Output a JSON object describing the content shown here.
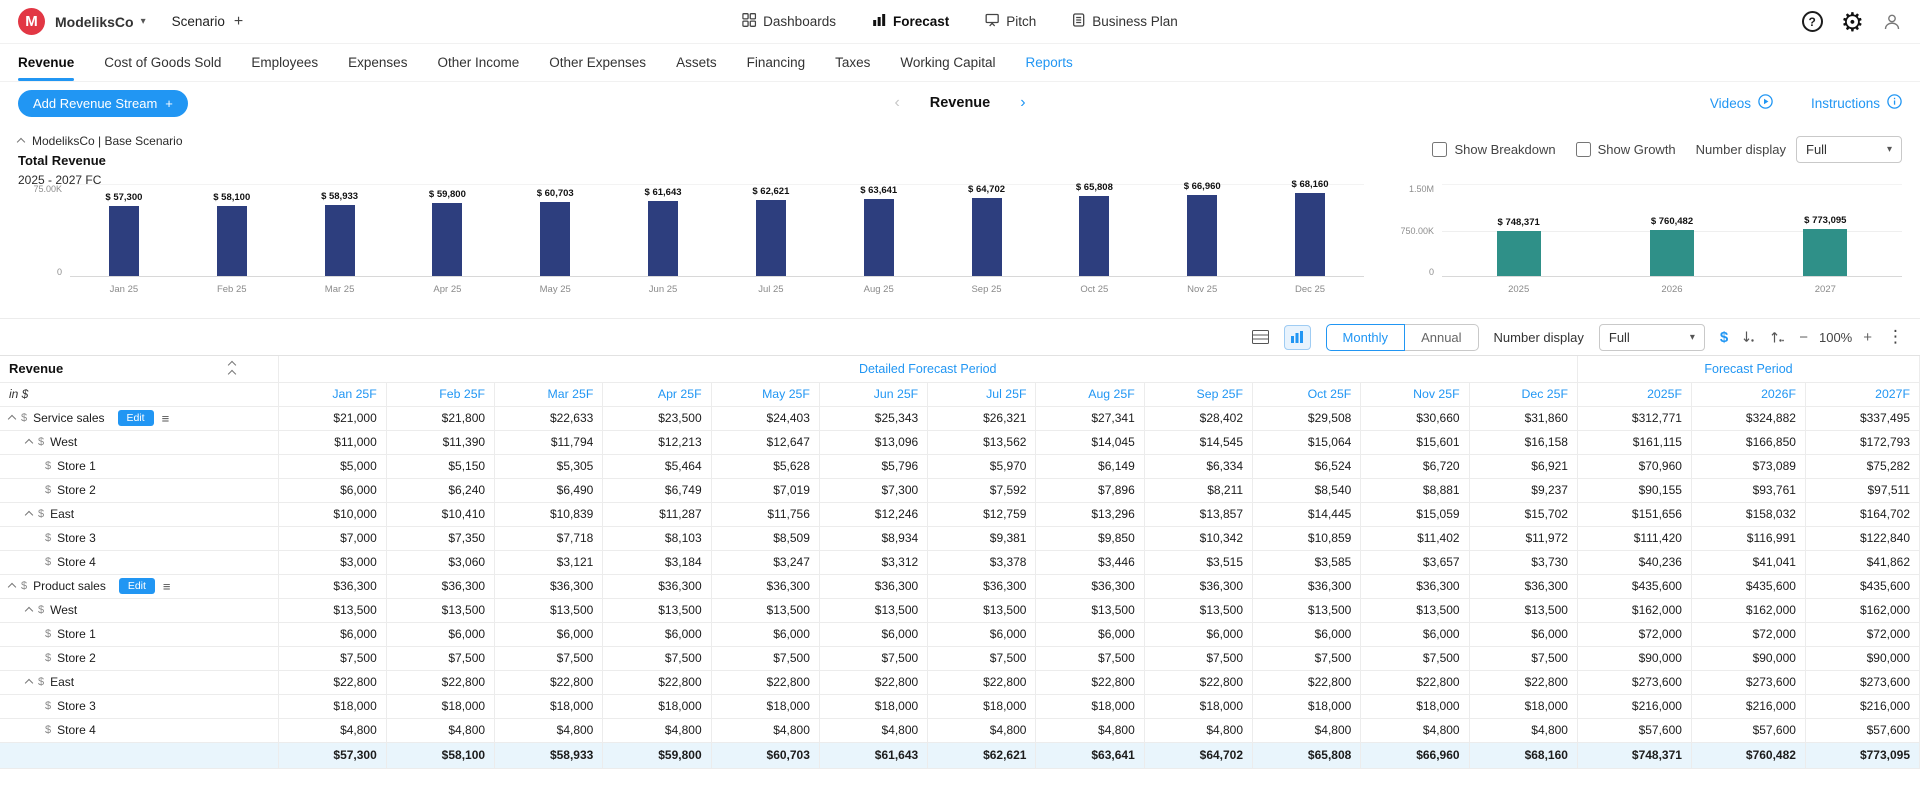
{
  "icons": {
    "chevron_down": "▾",
    "plus": "+",
    "help": "?",
    "gear": "⚙",
    "kebab": "⋮",
    "hamburger": "≡",
    "prev": "‹",
    "next": "›",
    "minus": "−",
    "zoom_plus": "+",
    "dollar": "$"
  },
  "topbar": {
    "logo_letter": "M",
    "company": "ModeliksCo",
    "scenario": "Scenario",
    "nav": [
      {
        "label": "Dashboards",
        "active": false
      },
      {
        "label": "Forecast",
        "active": true
      },
      {
        "label": "Pitch",
        "active": false
      },
      {
        "label": "Business Plan",
        "active": false
      }
    ]
  },
  "tabs": [
    {
      "label": "Revenue",
      "active": true
    },
    {
      "label": "Cost of Goods Sold"
    },
    {
      "label": "Employees"
    },
    {
      "label": "Expenses"
    },
    {
      "label": "Other Income"
    },
    {
      "label": "Other Expenses"
    },
    {
      "label": "Assets"
    },
    {
      "label": "Financing"
    },
    {
      "label": "Taxes"
    },
    {
      "label": "Working Capital"
    },
    {
      "label": "Reports",
      "link": true
    }
  ],
  "section_bar": {
    "add_button": "Add Revenue Stream",
    "title": "Revenue",
    "videos": "Videos",
    "instructions": "Instructions"
  },
  "chart_panel": {
    "context": "ModeliksCo | Base Scenario",
    "title": "Total Revenue",
    "period": "2025 - 2027 FC",
    "show_breakdown": "Show Breakdown",
    "show_growth": "Show Growth",
    "number_display_label": "Number display",
    "number_display_value": "Full"
  },
  "chart_data": [
    {
      "type": "bar",
      "title": "Total Revenue — Monthly 2025",
      "categories": [
        "Jan 25",
        "Feb 25",
        "Mar 25",
        "Apr 25",
        "May 25",
        "Jun 25",
        "Jul 25",
        "Aug 25",
        "Sep 25",
        "Oct 25",
        "Nov 25",
        "Dec 25"
      ],
      "values": [
        57300,
        58100,
        58933,
        59800,
        60703,
        61643,
        62621,
        63641,
        64702,
        65808,
        66960,
        68160
      ],
      "value_labels": [
        "$ 57,300",
        "$ 58,100",
        "$ 58,933",
        "$ 59,800",
        "$ 60,703",
        "$ 61,643",
        "$ 62,621",
        "$ 63,641",
        "$ 64,702",
        "$ 65,808",
        "$ 66,960",
        "$ 68,160"
      ],
      "ylim": [
        0,
        75000
      ],
      "yticks": [
        "75.00K",
        "0"
      ],
      "bar_color": "#2d3e7e",
      "legend": "none",
      "grid": "baseline"
    },
    {
      "type": "bar",
      "title": "Total Revenue — Annual",
      "categories": [
        "2025",
        "2026",
        "2027"
      ],
      "values": [
        748371,
        760482,
        773095
      ],
      "value_labels": [
        "$ 748,371",
        "$ 760,482",
        "$ 773,095"
      ],
      "ylim": [
        0,
        1500000
      ],
      "yticks": [
        "1.50M",
        "750.00K",
        "0"
      ],
      "bar_color": "#2f9088",
      "legend": "none",
      "grid": "baseline+mid"
    }
  ],
  "table_toolbar": {
    "monthly": "Monthly",
    "annual": "Annual",
    "number_display_label": "Number display",
    "number_display_value": "Full",
    "zoom": "100%"
  },
  "table": {
    "corner_title": "Revenue",
    "corner_sub": "in $",
    "group_monthly": "Detailed Forecast Period",
    "group_annual": "Forecast Period",
    "edit_label": "Edit",
    "monthly_columns": [
      "Jan 25F",
      "Feb 25F",
      "Mar 25F",
      "Apr 25F",
      "May 25F",
      "Jun 25F",
      "Jul 25F",
      "Aug 25F",
      "Sep 25F",
      "Oct 25F",
      "Nov 25F",
      "Dec 25F"
    ],
    "annual_columns": [
      "2025F",
      "2026F",
      "2027F"
    ],
    "rows": [
      {
        "label": "Service sales",
        "level": 0,
        "expandable": true,
        "edit": true,
        "monthly": [
          "$21,000",
          "$21,800",
          "$22,633",
          "$23,500",
          "$24,403",
          "$25,343",
          "$26,321",
          "$27,341",
          "$28,402",
          "$29,508",
          "$30,660",
          "$31,860"
        ],
        "annual": [
          "$312,771",
          "$324,882",
          "$337,495"
        ]
      },
      {
        "label": "West",
        "level": 1,
        "expandable": true,
        "edit": false,
        "monthly": [
          "$11,000",
          "$11,390",
          "$11,794",
          "$12,213",
          "$12,647",
          "$13,096",
          "$13,562",
          "$14,045",
          "$14,545",
          "$15,064",
          "$15,601",
          "$16,158"
        ],
        "annual": [
          "$161,115",
          "$166,850",
          "$172,793"
        ]
      },
      {
        "label": "Store 1",
        "level": 2,
        "expandable": false,
        "edit": false,
        "monthly": [
          "$5,000",
          "$5,150",
          "$5,305",
          "$5,464",
          "$5,628",
          "$5,796",
          "$5,970",
          "$6,149",
          "$6,334",
          "$6,524",
          "$6,720",
          "$6,921"
        ],
        "annual": [
          "$70,960",
          "$73,089",
          "$75,282"
        ]
      },
      {
        "label": "Store 2",
        "level": 2,
        "expandable": false,
        "edit": false,
        "monthly": [
          "$6,000",
          "$6,240",
          "$6,490",
          "$6,749",
          "$7,019",
          "$7,300",
          "$7,592",
          "$7,896",
          "$8,211",
          "$8,540",
          "$8,881",
          "$9,237"
        ],
        "annual": [
          "$90,155",
          "$93,761",
          "$97,511"
        ]
      },
      {
        "label": "East",
        "level": 1,
        "expandable": true,
        "edit": false,
        "monthly": [
          "$10,000",
          "$10,410",
          "$10,839",
          "$11,287",
          "$11,756",
          "$12,246",
          "$12,759",
          "$13,296",
          "$13,857",
          "$14,445",
          "$15,059",
          "$15,702"
        ],
        "annual": [
          "$151,656",
          "$158,032",
          "$164,702"
        ]
      },
      {
        "label": "Store 3",
        "level": 2,
        "expandable": false,
        "edit": false,
        "monthly": [
          "$7,000",
          "$7,350",
          "$7,718",
          "$8,103",
          "$8,509",
          "$8,934",
          "$9,381",
          "$9,850",
          "$10,342",
          "$10,859",
          "$11,402",
          "$11,972"
        ],
        "annual": [
          "$111,420",
          "$116,991",
          "$122,840"
        ]
      },
      {
        "label": "Store 4",
        "level": 2,
        "expandable": false,
        "edit": false,
        "monthly": [
          "$3,000",
          "$3,060",
          "$3,121",
          "$3,184",
          "$3,247",
          "$3,312",
          "$3,378",
          "$3,446",
          "$3,515",
          "$3,585",
          "$3,657",
          "$3,730"
        ],
        "annual": [
          "$40,236",
          "$41,041",
          "$41,862"
        ]
      },
      {
        "label": "Product sales",
        "level": 0,
        "expandable": true,
        "edit": true,
        "monthly": [
          "$36,300",
          "$36,300",
          "$36,300",
          "$36,300",
          "$36,300",
          "$36,300",
          "$36,300",
          "$36,300",
          "$36,300",
          "$36,300",
          "$36,300",
          "$36,300"
        ],
        "annual": [
          "$435,600",
          "$435,600",
          "$435,600"
        ]
      },
      {
        "label": "West",
        "level": 1,
        "expandable": true,
        "edit": false,
        "monthly": [
          "$13,500",
          "$13,500",
          "$13,500",
          "$13,500",
          "$13,500",
          "$13,500",
          "$13,500",
          "$13,500",
          "$13,500",
          "$13,500",
          "$13,500",
          "$13,500"
        ],
        "annual": [
          "$162,000",
          "$162,000",
          "$162,000"
        ]
      },
      {
        "label": "Store 1",
        "level": 2,
        "expandable": false,
        "edit": false,
        "monthly": [
          "$6,000",
          "$6,000",
          "$6,000",
          "$6,000",
          "$6,000",
          "$6,000",
          "$6,000",
          "$6,000",
          "$6,000",
          "$6,000",
          "$6,000",
          "$6,000"
        ],
        "annual": [
          "$72,000",
          "$72,000",
          "$72,000"
        ]
      },
      {
        "label": "Store 2",
        "level": 2,
        "expandable": false,
        "edit": false,
        "monthly": [
          "$7,500",
          "$7,500",
          "$7,500",
          "$7,500",
          "$7,500",
          "$7,500",
          "$7,500",
          "$7,500",
          "$7,500",
          "$7,500",
          "$7,500",
          "$7,500"
        ],
        "annual": [
          "$90,000",
          "$90,000",
          "$90,000"
        ]
      },
      {
        "label": "East",
        "level": 1,
        "expandable": true,
        "edit": false,
        "monthly": [
          "$22,800",
          "$22,800",
          "$22,800",
          "$22,800",
          "$22,800",
          "$22,800",
          "$22,800",
          "$22,800",
          "$22,800",
          "$22,800",
          "$22,800",
          "$22,800"
        ],
        "annual": [
          "$273,600",
          "$273,600",
          "$273,600"
        ]
      },
      {
        "label": "Store 3",
        "level": 2,
        "expandable": false,
        "edit": false,
        "monthly": [
          "$18,000",
          "$18,000",
          "$18,000",
          "$18,000",
          "$18,000",
          "$18,000",
          "$18,000",
          "$18,000",
          "$18,000",
          "$18,000",
          "$18,000",
          "$18,000"
        ],
        "annual": [
          "$216,000",
          "$216,000",
          "$216,000"
        ]
      },
      {
        "label": "Store 4",
        "level": 2,
        "expandable": false,
        "edit": false,
        "monthly": [
          "$4,800",
          "$4,800",
          "$4,800",
          "$4,800",
          "$4,800",
          "$4,800",
          "$4,800",
          "$4,800",
          "$4,800",
          "$4,800",
          "$4,800",
          "$4,800"
        ],
        "annual": [
          "$57,600",
          "$57,600",
          "$57,600"
        ]
      }
    ],
    "total_row": {
      "monthly": [
        "$57,300",
        "$58,100",
        "$58,933",
        "$59,800",
        "$60,703",
        "$61,643",
        "$62,621",
        "$63,641",
        "$64,702",
        "$65,808",
        "$66,960",
        "$68,160"
      ],
      "annual": [
        "$748,371",
        "$760,482",
        "$773,095"
      ]
    }
  },
  "colors": {
    "accent": "#2196f3",
    "monthly_bar": "#2d3e7e",
    "annual_bar": "#2f9088",
    "total_row_bg": "#e9f5fc"
  }
}
